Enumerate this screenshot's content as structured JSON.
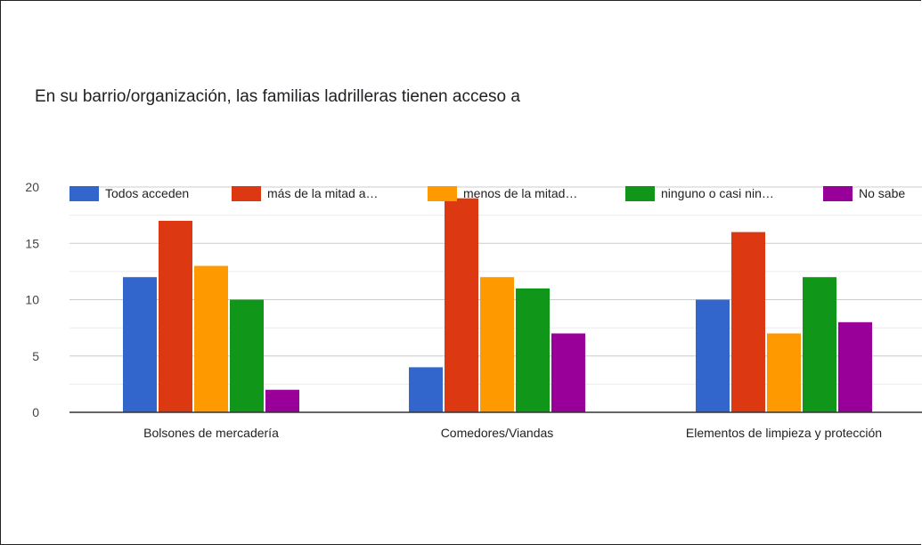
{
  "chart_data": {
    "type": "bar",
    "title": "En su barrio/organización, las familias ladrilleras tienen acceso a",
    "categories": [
      "Bolsones de mercadería",
      "Comedores/Viandas",
      "Elementos de limpieza y protección"
    ],
    "series": [
      {
        "name": "Todos acceden",
        "color": "#3366cc",
        "values": [
          12,
          4,
          10
        ]
      },
      {
        "name": "más de la mitad a…",
        "color": "#dc3912",
        "values": [
          17,
          19,
          16
        ]
      },
      {
        "name": "menos de la mitad…",
        "color": "#ff9900",
        "values": [
          13,
          12,
          7
        ]
      },
      {
        "name": "ninguno o casi nin…",
        "color": "#109618",
        "values": [
          10,
          11,
          12
        ]
      },
      {
        "name": "No sabe",
        "color": "#990099",
        "values": [
          2,
          7,
          8
        ]
      }
    ],
    "ylim": [
      0,
      20
    ],
    "yticks": [
      0,
      5,
      10,
      15,
      20
    ],
    "grid": true,
    "legend_position": "top"
  }
}
